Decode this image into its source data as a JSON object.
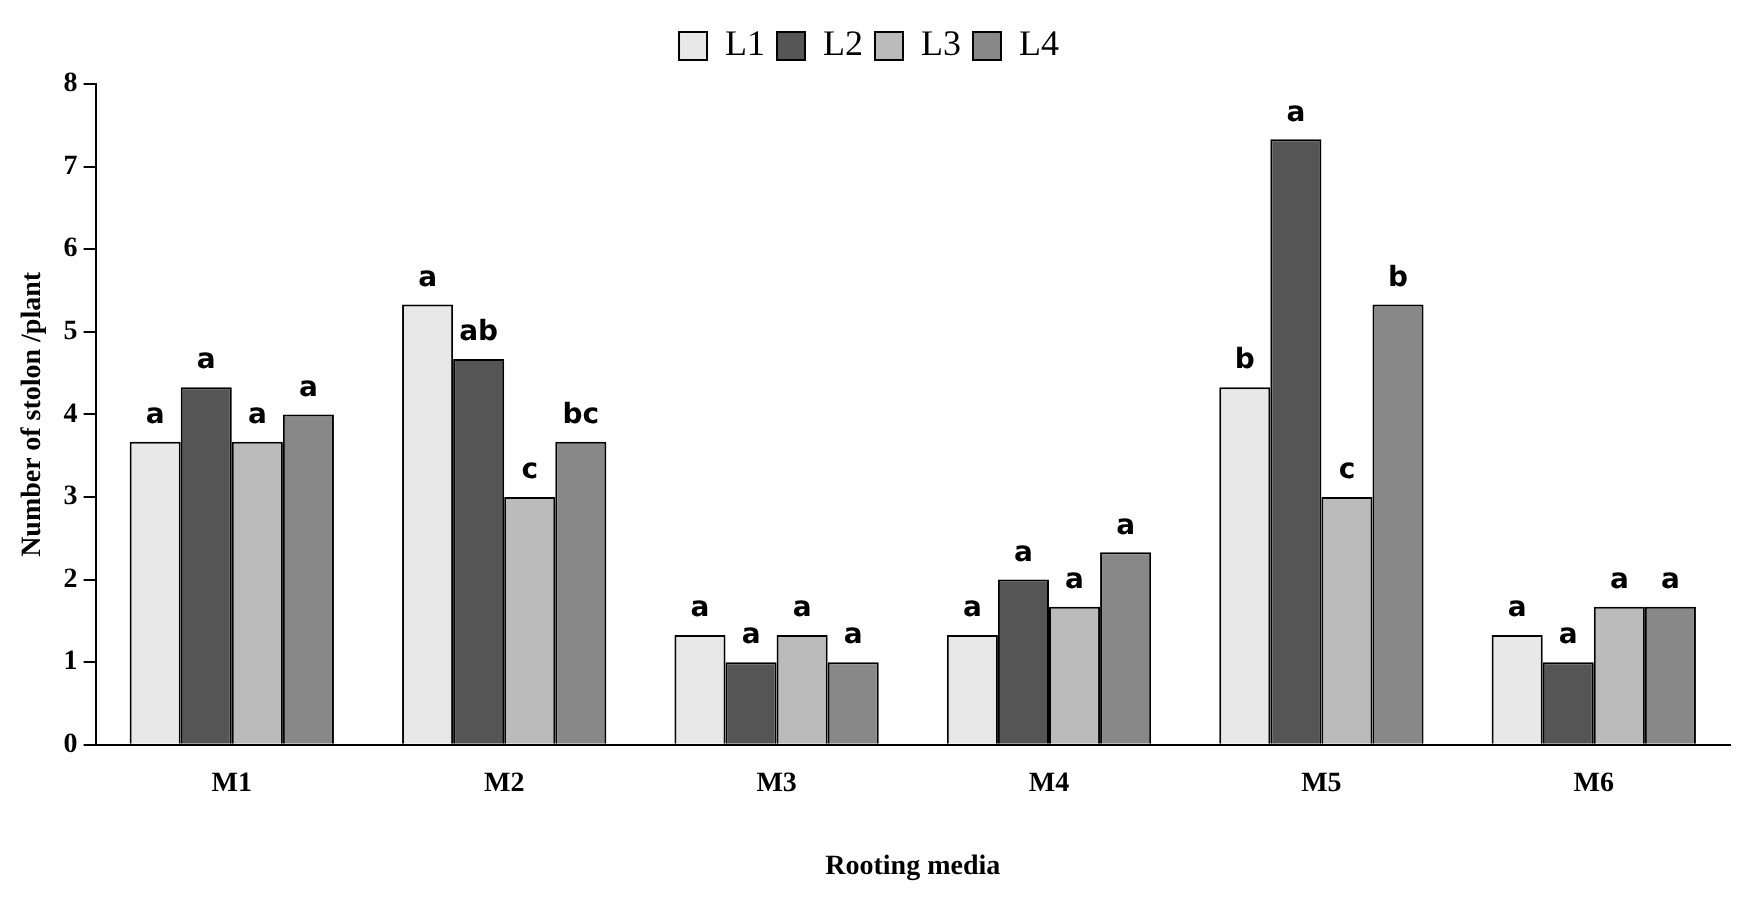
{
  "chart_data": {
    "type": "bar",
    "xlabel": "Rooting media",
    "ylabel": "Number of stolon /plant",
    "categories": [
      "M1",
      "M2",
      "M3",
      "M4",
      "M5",
      "M6"
    ],
    "series": [
      {
        "name": "L1",
        "color": "#e8e8e8",
        "values": [
          3.67,
          5.33,
          1.33,
          1.33,
          4.33,
          1.33
        ],
        "value_labels": [
          "a",
          "a",
          "a",
          "a",
          "b",
          "a"
        ]
      },
      {
        "name": "L2",
        "color": "#555555",
        "values": [
          4.33,
          4.67,
          1.0,
          2.0,
          7.33,
          1.0
        ],
        "value_labels": [
          "a",
          "ab",
          "a",
          "a",
          "a",
          "a"
        ]
      },
      {
        "name": "L3",
        "color": "#bbbbbb",
        "values": [
          3.67,
          3.0,
          1.33,
          1.67,
          3.0,
          1.67
        ],
        "value_labels": [
          "a",
          "c",
          "a",
          "a",
          "c",
          "a"
        ]
      },
      {
        "name": "L4",
        "color": "#888888",
        "values": [
          4.0,
          3.67,
          1.0,
          2.33,
          5.33,
          1.67
        ],
        "value_labels": [
          "a",
          "bc",
          "a",
          "a",
          "b",
          "a"
        ]
      }
    ],
    "ylim": [
      0,
      8
    ],
    "yticks": [
      0,
      1,
      2,
      3,
      4,
      5,
      6,
      7,
      8
    ],
    "grid": false,
    "legend": "top"
  }
}
